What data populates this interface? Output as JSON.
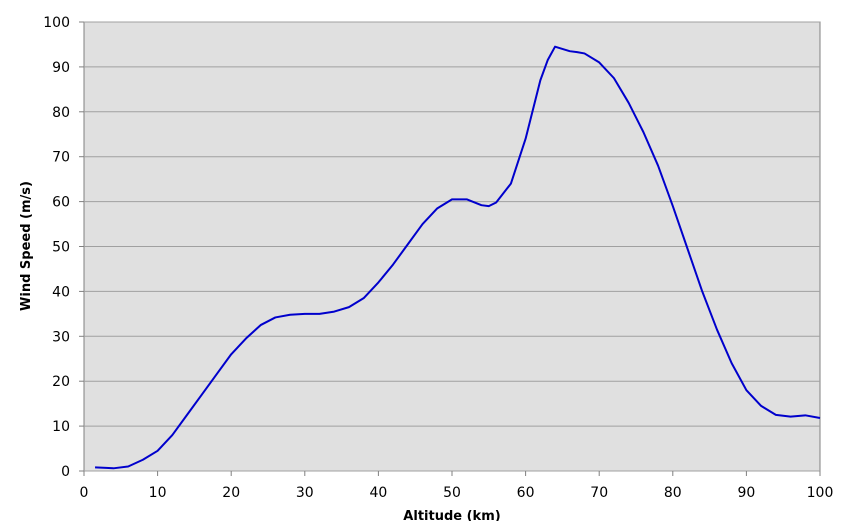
{
  "chart_data": {
    "type": "line",
    "x_label": "Altitude (km)",
    "y_label": "Wind Speed (m/s)",
    "x": [
      1.5,
      3,
      4,
      6,
      8,
      10,
      12,
      14,
      16,
      18,
      20,
      22,
      24,
      26,
      28,
      30,
      32,
      34,
      36,
      38,
      40,
      42,
      44,
      46,
      48,
      50,
      52,
      54,
      55,
      56,
      58,
      60,
      62,
      63,
      64,
      65,
      66,
      67,
      68,
      70,
      72,
      74,
      76,
      78,
      80,
      82,
      84,
      86,
      88,
      90,
      92,
      94,
      96,
      98,
      100
    ],
    "series": [
      {
        "name": "Wind Speed",
        "color": "#0000cc",
        "values": [
          0.8,
          0.7,
          0.6,
          1,
          2.5,
          4.5,
          8,
          12.5,
          17,
          21.5,
          26,
          29.5,
          32.5,
          34.2,
          34.8,
          35,
          35,
          35.5,
          36.5,
          38.5,
          42,
          46,
          50.5,
          55,
          58.5,
          60.5,
          60.5,
          59.2,
          59,
          59.8,
          64,
          74,
          87,
          91.5,
          94.5,
          94,
          93.5,
          93.3,
          93,
          91,
          87.5,
          82,
          75.5,
          68,
          59,
          49.5,
          40,
          31.5,
          24,
          18,
          14.5,
          12.5,
          12.1,
          12.4,
          11.8
        ]
      }
    ],
    "xlim": [
      0,
      100
    ],
    "xticks": [
      0,
      10,
      20,
      30,
      40,
      50,
      60,
      70,
      80,
      90,
      100
    ],
    "ylim": [
      0,
      100
    ],
    "yticks": [
      0,
      10,
      20,
      30,
      40,
      50,
      60,
      70,
      80,
      90,
      100
    ],
    "grid": true
  }
}
